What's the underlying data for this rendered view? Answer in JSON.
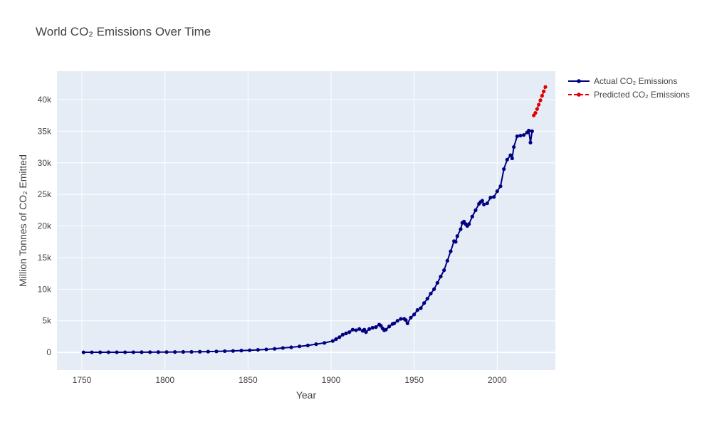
{
  "chart_data": {
    "type": "line",
    "title": "World CO₂ Emissions Over Time",
    "xlabel": "Year",
    "ylabel": "Million Tonnes of CO₂ Emitted",
    "xlim": [
      1735,
      2035
    ],
    "ylim": [
      -2800,
      44500
    ],
    "x_ticks": [
      1750,
      1800,
      1850,
      1900,
      1950,
      2000
    ],
    "y_ticks": [
      0,
      5000,
      10000,
      15000,
      20000,
      25000,
      30000,
      35000,
      40000
    ],
    "y_tick_labels": [
      "0",
      "5k",
      "10k",
      "15k",
      "20k",
      "25k",
      "30k",
      "35k",
      "40k"
    ],
    "grid": true,
    "legend_position": "top-right",
    "colors": {
      "plot_background": "#e5ecf6",
      "grid": "#ffffff",
      "actual": "#000080",
      "predicted": "#dd0000"
    },
    "series": [
      {
        "name": "Actual CO₂ Emissions",
        "color": "#000080",
        "dash": "solid",
        "marker": "circle",
        "x": [
          1751,
          1756,
          1761,
          1766,
          1771,
          1776,
          1781,
          1786,
          1791,
          1796,
          1801,
          1806,
          1811,
          1816,
          1821,
          1826,
          1831,
          1836,
          1841,
          1846,
          1851,
          1856,
          1861,
          1866,
          1871,
          1876,
          1881,
          1886,
          1891,
          1896,
          1901,
          1903,
          1905,
          1907,
          1909,
          1911,
          1913,
          1915,
          1917,
          1919,
          1920,
          1921,
          1923,
          1925,
          1927,
          1929,
          1930,
          1931,
          1932,
          1933,
          1935,
          1937,
          1938,
          1940,
          1942,
          1944,
          1945,
          1946,
          1948,
          1950,
          1952,
          1954,
          1956,
          1958,
          1960,
          1962,
          1964,
          1966,
          1968,
          1970,
          1972,
          1974,
          1975,
          1976,
          1978,
          1979,
          1980,
          1981,
          1982,
          1983,
          1985,
          1987,
          1989,
          1990,
          1991,
          1992,
          1994,
          1996,
          1998,
          2000,
          2002,
          2004,
          2006,
          2008,
          2009,
          2010,
          2012,
          2014,
          2016,
          2018,
          2019,
          2020,
          2021
        ],
        "y": [
          10,
          10,
          15,
          20,
          20,
          20,
          25,
          30,
          35,
          40,
          50,
          60,
          70,
          80,
          100,
          120,
          150,
          190,
          230,
          280,
          330,
          400,
          470,
          560,
          700,
          800,
          950,
          1100,
          1300,
          1500,
          1800,
          2100,
          2400,
          2800,
          3000,
          3200,
          3600,
          3500,
          3700,
          3400,
          3600,
          3200,
          3700,
          3900,
          4000,
          4400,
          4200,
          3800,
          3500,
          3600,
          4100,
          4500,
          4600,
          5000,
          5300,
          5300,
          5100,
          4600,
          5500,
          6000,
          6700,
          7000,
          7800,
          8500,
          9300,
          10000,
          11000,
          12000,
          13000,
          14500,
          16000,
          17600,
          17500,
          18400,
          19500,
          20500,
          20700,
          20300,
          20000,
          20300,
          21500,
          22500,
          23500,
          23800,
          24000,
          23400,
          23600,
          24500,
          24600,
          25500,
          26300,
          29000,
          30500,
          31200,
          30700,
          32500,
          34200,
          34300,
          34400,
          34800,
          35100,
          33200,
          35000
        ]
      },
      {
        "name": "Predicted CO₂ Emissions",
        "color": "#dd0000",
        "dash": "dash",
        "marker": "circle",
        "x": [
          2022,
          2023,
          2024,
          2025,
          2026,
          2027,
          2028,
          2029
        ],
        "y": [
          37500,
          37900,
          38500,
          39200,
          39900,
          40600,
          41300,
          42000
        ]
      }
    ]
  }
}
